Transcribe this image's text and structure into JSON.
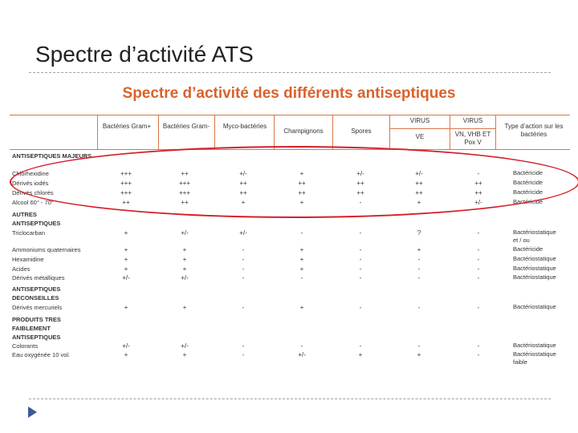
{
  "slide": {
    "title": "Spectre d’activité ATS"
  },
  "document": {
    "heading": "Spectre d’activité des différents antiseptiques",
    "headers": {
      "gram_pos": "Bactéries Gram+",
      "gram_neg": "Bactéries Gram-",
      "myco": "Myco-bactéries",
      "champignons": "Champignons",
      "spores": "Spores",
      "virus1": "VIRUS",
      "virus2": "VIRUS",
      "ve": "VE",
      "vn": "VN, VHB ET Pox V",
      "action": "Type d’action sur les bactéries"
    },
    "groups": [
      {
        "label": "ANTISEPTIQUES MAJEURS"
      },
      {
        "label": "AUTRES ANTISEPTIQUES"
      },
      {
        "label": "ANTISEPTIQUES DECONSEILLES"
      },
      {
        "label": "PRODUITS TRES FAIBLEMENT ANTISEPTIQUES"
      }
    ],
    "rows": [
      {
        "name": "Chlorhexidine",
        "values": [
          "+++",
          "++",
          "+/-",
          "+",
          "+/-",
          "+/-",
          "-"
        ],
        "action": "Bactéricide"
      },
      {
        "name": "Dérivés iodés",
        "values": [
          "+++",
          "+++",
          "++",
          "++",
          "++",
          "++",
          "++"
        ],
        "action": "Bactéricide"
      },
      {
        "name": "Dérivés chlorés",
        "values": [
          "+++",
          "+++",
          "++",
          "++",
          "++",
          "++",
          "++"
        ],
        "action": "Bactéricide"
      },
      {
        "name": "Alcool 60° - 70°",
        "values": [
          "++",
          "++",
          "+",
          "+",
          "-",
          "+",
          "+/-"
        ],
        "action": "Bactéricide"
      },
      {
        "name": "Triclocarban",
        "values": [
          "+",
          "+/-",
          "+/-",
          "-",
          "-",
          "?",
          "-"
        ],
        "action": "Bactériostatique et / ou"
      },
      {
        "name": "Ammoniums quaternaires",
        "values": [
          "+",
          "+",
          "-",
          "+",
          "-",
          "+",
          "-"
        ],
        "action": "Bactéricide"
      },
      {
        "name": "Hexamidine",
        "values": [
          "+",
          "+",
          "-",
          "+",
          "-",
          "-",
          "-"
        ],
        "action": "Bactériostatique"
      },
      {
        "name": "Acides",
        "values": [
          "+",
          "+",
          "-",
          "+",
          "-",
          "-",
          "-"
        ],
        "action": "Bactériostatique"
      },
      {
        "name": "Dérivés métalliques",
        "values": [
          "+/-",
          "+/-",
          "-",
          "-",
          "-",
          "-",
          "-"
        ],
        "action": "Bactériostatique"
      },
      {
        "name": "Dérivés mercuriels",
        "values": [
          "+",
          "+",
          "-",
          "+",
          "-",
          "-",
          "-"
        ],
        "action": "Bactériostatique"
      },
      {
        "name": "Colorants",
        "values": [
          "+/-",
          "+/-",
          "-",
          "-",
          "-",
          "-",
          "-"
        ],
        "action": "Bactériostatique"
      },
      {
        "name": "Eau oxygénée 10 vol.",
        "values": [
          "+",
          "+",
          "-",
          "+/-",
          "+",
          "+",
          "-"
        ],
        "action": "Bactériostatique faible"
      }
    ],
    "colors": {
      "heading": "#d9622b",
      "header_lines": "#d8774a",
      "highlight": "#d3202a"
    }
  }
}
